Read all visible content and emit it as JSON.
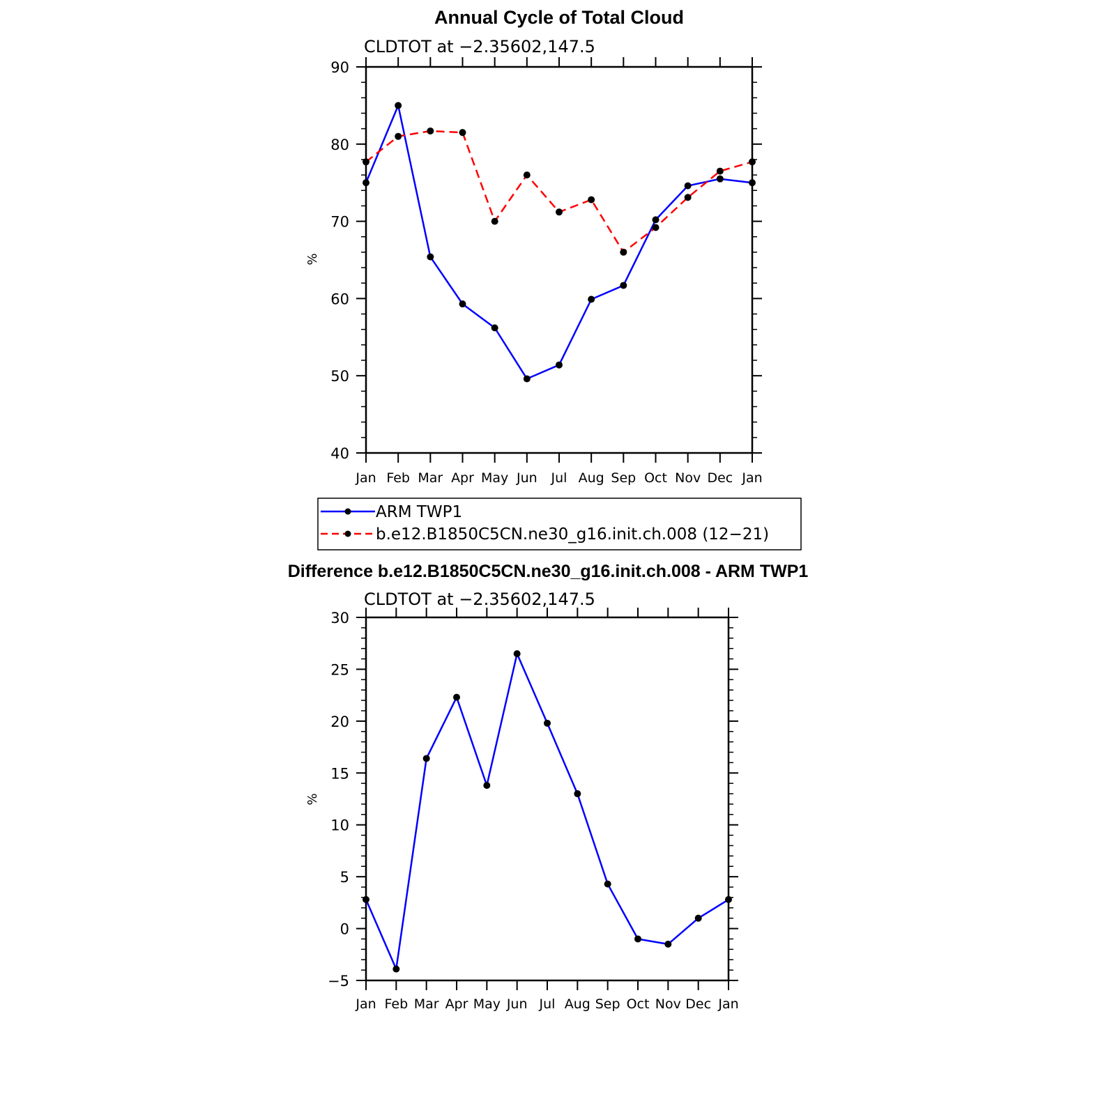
{
  "chart_data": [
    {
      "type": "line",
      "title": "Annual Cycle of Total Cloud",
      "subtitle": "CLDTOT at −2.35602,147.5",
      "xlabel": "",
      "ylabel": "%",
      "categories": [
        "Jan",
        "Feb",
        "Mar",
        "Apr",
        "May",
        "Jun",
        "Jul",
        "Aug",
        "Sep",
        "Oct",
        "Nov",
        "Dec",
        "Jan"
      ],
      "ylim": [
        40,
        90
      ],
      "yticks": [
        40,
        50,
        60,
        70,
        80,
        90
      ],
      "ytick_labels": [
        "40",
        "50",
        "60",
        "70",
        "80",
        "90"
      ],
      "grid": false,
      "legend_placement": "bottom",
      "series": [
        {
          "name": "ARM TWP1",
          "color": "#0000ff",
          "style": "solid",
          "values": [
            75.0,
            85.0,
            65.4,
            59.3,
            56.2,
            49.6,
            51.4,
            59.9,
            61.7,
            70.2,
            74.6,
            75.5,
            75.0
          ]
        },
        {
          "name": "b.e12.B1850C5CN.ne30_g16.init.ch.008 (12−21)",
          "color": "#ff0000",
          "style": "dashed",
          "values": [
            77.7,
            81.0,
            81.7,
            81.5,
            70.0,
            76.0,
            71.2,
            72.8,
            66.0,
            69.2,
            73.1,
            76.5,
            77.7
          ]
        }
      ]
    },
    {
      "type": "line",
      "title": "Difference b.e12.B1850C5CN.ne30_g16.init.ch.008 - ARM TWP1",
      "subtitle": "CLDTOT at −2.35602,147.5",
      "xlabel": "",
      "ylabel": "%",
      "categories": [
        "Jan",
        "Feb",
        "Mar",
        "Apr",
        "May",
        "Jun",
        "Jul",
        "Aug",
        "Sep",
        "Oct",
        "Nov",
        "Dec",
        "Jan"
      ],
      "ylim": [
        -5,
        30
      ],
      "yticks": [
        -5,
        0,
        5,
        10,
        15,
        20,
        25,
        30
      ],
      "ytick_labels": [
        "−5",
        "0",
        "5",
        "10",
        "15",
        "20",
        "25",
        "30"
      ],
      "grid": false,
      "series": [
        {
          "color": "#0000ff",
          "style": "solid",
          "values": [
            2.8,
            -3.9,
            16.4,
            22.3,
            13.8,
            26.5,
            19.8,
            13.0,
            4.3,
            -1.0,
            -1.5,
            1.0,
            2.8
          ]
        }
      ]
    }
  ]
}
